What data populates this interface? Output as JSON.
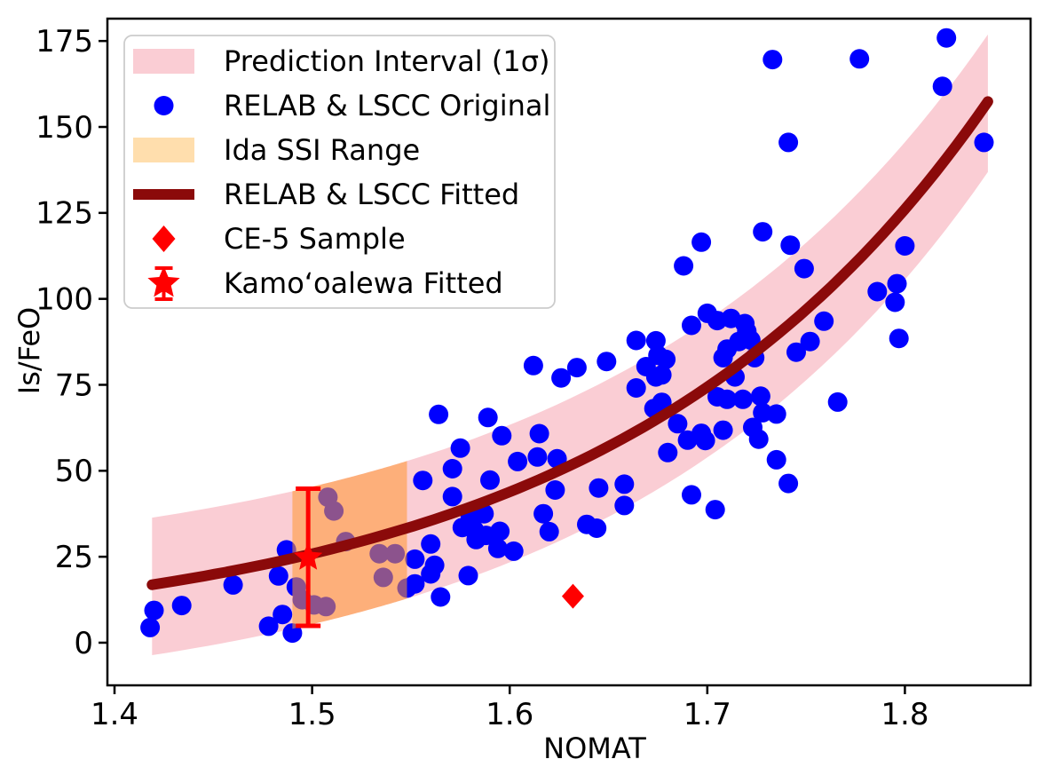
{
  "chart_data": {
    "type": "scatter",
    "title": "",
    "xlabel": "NOMAT",
    "ylabel": "Is/FeO",
    "xlim": [
      1.3964,
      1.8636
    ],
    "ylim": [
      -12.4,
      181.5
    ],
    "grid": false,
    "legend_position": "upper-left",
    "xticks": {
      "values": [
        1.4,
        1.5,
        1.6,
        1.7,
        1.8
      ],
      "labels": [
        "1.4",
        "1.5",
        "1.6",
        "1.7",
        "1.8"
      ]
    },
    "yticks": {
      "values": [
        0,
        25,
        50,
        75,
        100,
        125,
        150,
        175
      ],
      "labels": [
        "0",
        "25",
        "50",
        "75",
        "100",
        "125",
        "150",
        "175"
      ]
    },
    "legend": [
      {
        "label": "Prediction Interval (1σ)",
        "marker": "band-patch",
        "color": "#FACDD4"
      },
      {
        "label": "RELAB & LSCC Original",
        "marker": "dot",
        "color": "#0000FF"
      },
      {
        "label": "Ida SSI Range",
        "marker": "band-patch",
        "color": "#FFDEAD"
      },
      {
        "label": "RELAB & LSCC Fitted",
        "marker": "thick-line",
        "color": "#8B0A0A"
      },
      {
        "label": "CE-5 Sample",
        "marker": "diamond",
        "color": "#FF0000"
      },
      {
        "label": "Kamoʻoalewa Fitted",
        "marker": "star-errorbar",
        "color": "#FF0000"
      }
    ],
    "prediction_interval": {
      "name": "Prediction Interval (1σ)",
      "color": "#FACDD4",
      "upper_offset": 19.5,
      "lower_offset": -20.5,
      "x_range": [
        1.419,
        1.842
      ]
    },
    "fitted_curve": {
      "name": "RELAB & LSCC Fitted",
      "color": "#8B0A0A",
      "model": "y = 0.0094 * exp(5.28 * x)",
      "a": 0.0094,
      "b": 5.28,
      "x_range": [
        1.419,
        1.842
      ]
    },
    "ida_ssi_range": {
      "name": "Ida SSI Range",
      "color": "#FF9830",
      "opacity": 0.55,
      "x_range": [
        1.49,
        1.548
      ]
    },
    "ce5_sample": {
      "name": "CE-5 Sample",
      "color": "#FF0000",
      "x": 1.632,
      "y": 13.5
    },
    "kamooalewa": {
      "name": "Kamoʻoalewa Fitted",
      "color": "#FF0000",
      "x": 1.498,
      "y": 24.8,
      "y_err_minus": 19.9,
      "y_err_plus": 20.0
    },
    "scatter": {
      "name": "RELAB & LSCC Original",
      "color": "#0000FF",
      "points": [
        [
          1.42,
          9.4
        ],
        [
          1.418,
          4.4
        ],
        [
          1.434,
          10.8
        ],
        [
          1.46,
          16.8
        ],
        [
          1.478,
          4.8
        ],
        [
          1.483,
          19.4
        ],
        [
          1.485,
          8.2
        ],
        [
          1.487,
          27.0
        ],
        [
          1.49,
          2.8
        ],
        [
          1.492,
          16.2
        ],
        [
          1.495,
          12.5
        ],
        [
          1.501,
          11.0
        ],
        [
          1.507,
          10.5
        ],
        [
          1.508,
          42.3
        ],
        [
          1.511,
          38.3
        ],
        [
          1.517,
          29.4
        ],
        [
          1.534,
          25.9
        ],
        [
          1.542,
          25.9
        ],
        [
          1.536,
          19.0
        ],
        [
          1.548,
          15.9
        ],
        [
          1.552,
          24.3
        ],
        [
          1.56,
          28.7
        ],
        [
          1.562,
          22.5
        ],
        [
          1.56,
          20.0
        ],
        [
          1.552,
          17.1
        ],
        [
          1.565,
          13.3
        ],
        [
          1.579,
          19.5
        ],
        [
          1.556,
          47.2
        ],
        [
          1.564,
          66.4
        ],
        [
          1.571,
          42.5
        ],
        [
          1.571,
          50.6
        ],
        [
          1.575,
          56.6
        ],
        [
          1.58,
          37.0
        ],
        [
          1.587,
          37.5
        ],
        [
          1.576,
          33.5
        ],
        [
          1.582,
          32.8
        ],
        [
          1.588,
          31.2
        ],
        [
          1.595,
          32.4
        ],
        [
          1.583,
          30.0
        ],
        [
          1.594,
          27.4
        ],
        [
          1.602,
          26.6
        ],
        [
          1.589,
          65.5
        ],
        [
          1.59,
          47.3
        ],
        [
          1.596,
          60.2
        ],
        [
          1.604,
          52.7
        ],
        [
          1.612,
          80.6
        ],
        [
          1.615,
          60.8
        ],
        [
          1.614,
          54.0
        ],
        [
          1.624,
          53.5
        ],
        [
          1.623,
          44.4
        ],
        [
          1.617,
          37.5
        ],
        [
          1.62,
          32.3
        ],
        [
          1.626,
          77.0
        ],
        [
          1.634,
          80.0
        ],
        [
          1.639,
          34.4
        ],
        [
          1.644,
          33.3
        ],
        [
          1.645,
          45.0
        ],
        [
          1.649,
          81.8
        ],
        [
          1.658,
          46.1
        ],
        [
          1.658,
          39.9
        ],
        [
          1.664,
          74.1
        ],
        [
          1.664,
          87.9
        ],
        [
          1.669,
          80.3
        ],
        [
          1.673,
          68.1
        ],
        [
          1.677,
          69.9
        ],
        [
          1.674,
          87.8
        ],
        [
          1.675,
          83.6
        ],
        [
          1.679,
          82.4
        ],
        [
          1.674,
          77.3
        ],
        [
          1.677,
          77.9
        ],
        [
          1.68,
          55.3
        ],
        [
          1.685,
          63.7
        ],
        [
          1.69,
          58.9
        ],
        [
          1.697,
          60.9
        ],
        [
          1.699,
          58.8
        ],
        [
          1.692,
          43.0
        ],
        [
          1.704,
          38.7
        ],
        [
          1.697,
          116.5
        ],
        [
          1.688,
          109.6
        ],
        [
          1.7,
          95.8
        ],
        [
          1.705,
          93.7
        ],
        [
          1.712,
          94.3
        ],
        [
          1.719,
          92.8
        ],
        [
          1.692,
          92.3
        ],
        [
          1.72,
          90.6
        ],
        [
          1.716,
          87.6
        ],
        [
          1.722,
          88.0
        ],
        [
          1.71,
          85.4
        ],
        [
          1.708,
          82.9
        ],
        [
          1.724,
          82.9
        ],
        [
          1.714,
          77.3
        ],
        [
          1.728,
          119.5
        ],
        [
          1.742,
          115.6
        ],
        [
          1.749,
          108.8
        ],
        [
          1.745,
          84.5
        ],
        [
          1.752,
          87.6
        ],
        [
          1.705,
          71.5
        ],
        [
          1.71,
          70.8
        ],
        [
          1.718,
          70.8
        ],
        [
          1.727,
          71.7
        ],
        [
          1.728,
          66.9
        ],
        [
          1.735,
          66.5
        ],
        [
          1.708,
          61.8
        ],
        [
          1.723,
          62.6
        ],
        [
          1.726,
          59.2
        ],
        [
          1.735,
          53.2
        ],
        [
          1.741,
          46.3
        ],
        [
          1.759,
          93.5
        ],
        [
          1.766,
          70.0
        ],
        [
          1.733,
          169.6
        ],
        [
          1.777,
          169.8
        ],
        [
          1.741,
          145.5
        ],
        [
          1.821,
          175.9
        ],
        [
          1.819,
          161.8
        ],
        [
          1.84,
          145.5
        ],
        [
          1.8,
          115.4
        ],
        [
          1.796,
          104.4
        ],
        [
          1.786,
          102.1
        ],
        [
          1.795,
          99.0
        ],
        [
          1.797,
          88.5
        ]
      ]
    },
    "colors": {
      "background": "#FFFFFF",
      "frame": "#000000",
      "text": "#000000",
      "scatter_blue": "#0000FF",
      "band_pink": "#FACDD4",
      "orange_overlay": "#FF9830",
      "legend_orange_patch": "#FFDEAD",
      "fitted_darkred": "#8B0A0A",
      "sample_red": "#FF0000"
    }
  }
}
